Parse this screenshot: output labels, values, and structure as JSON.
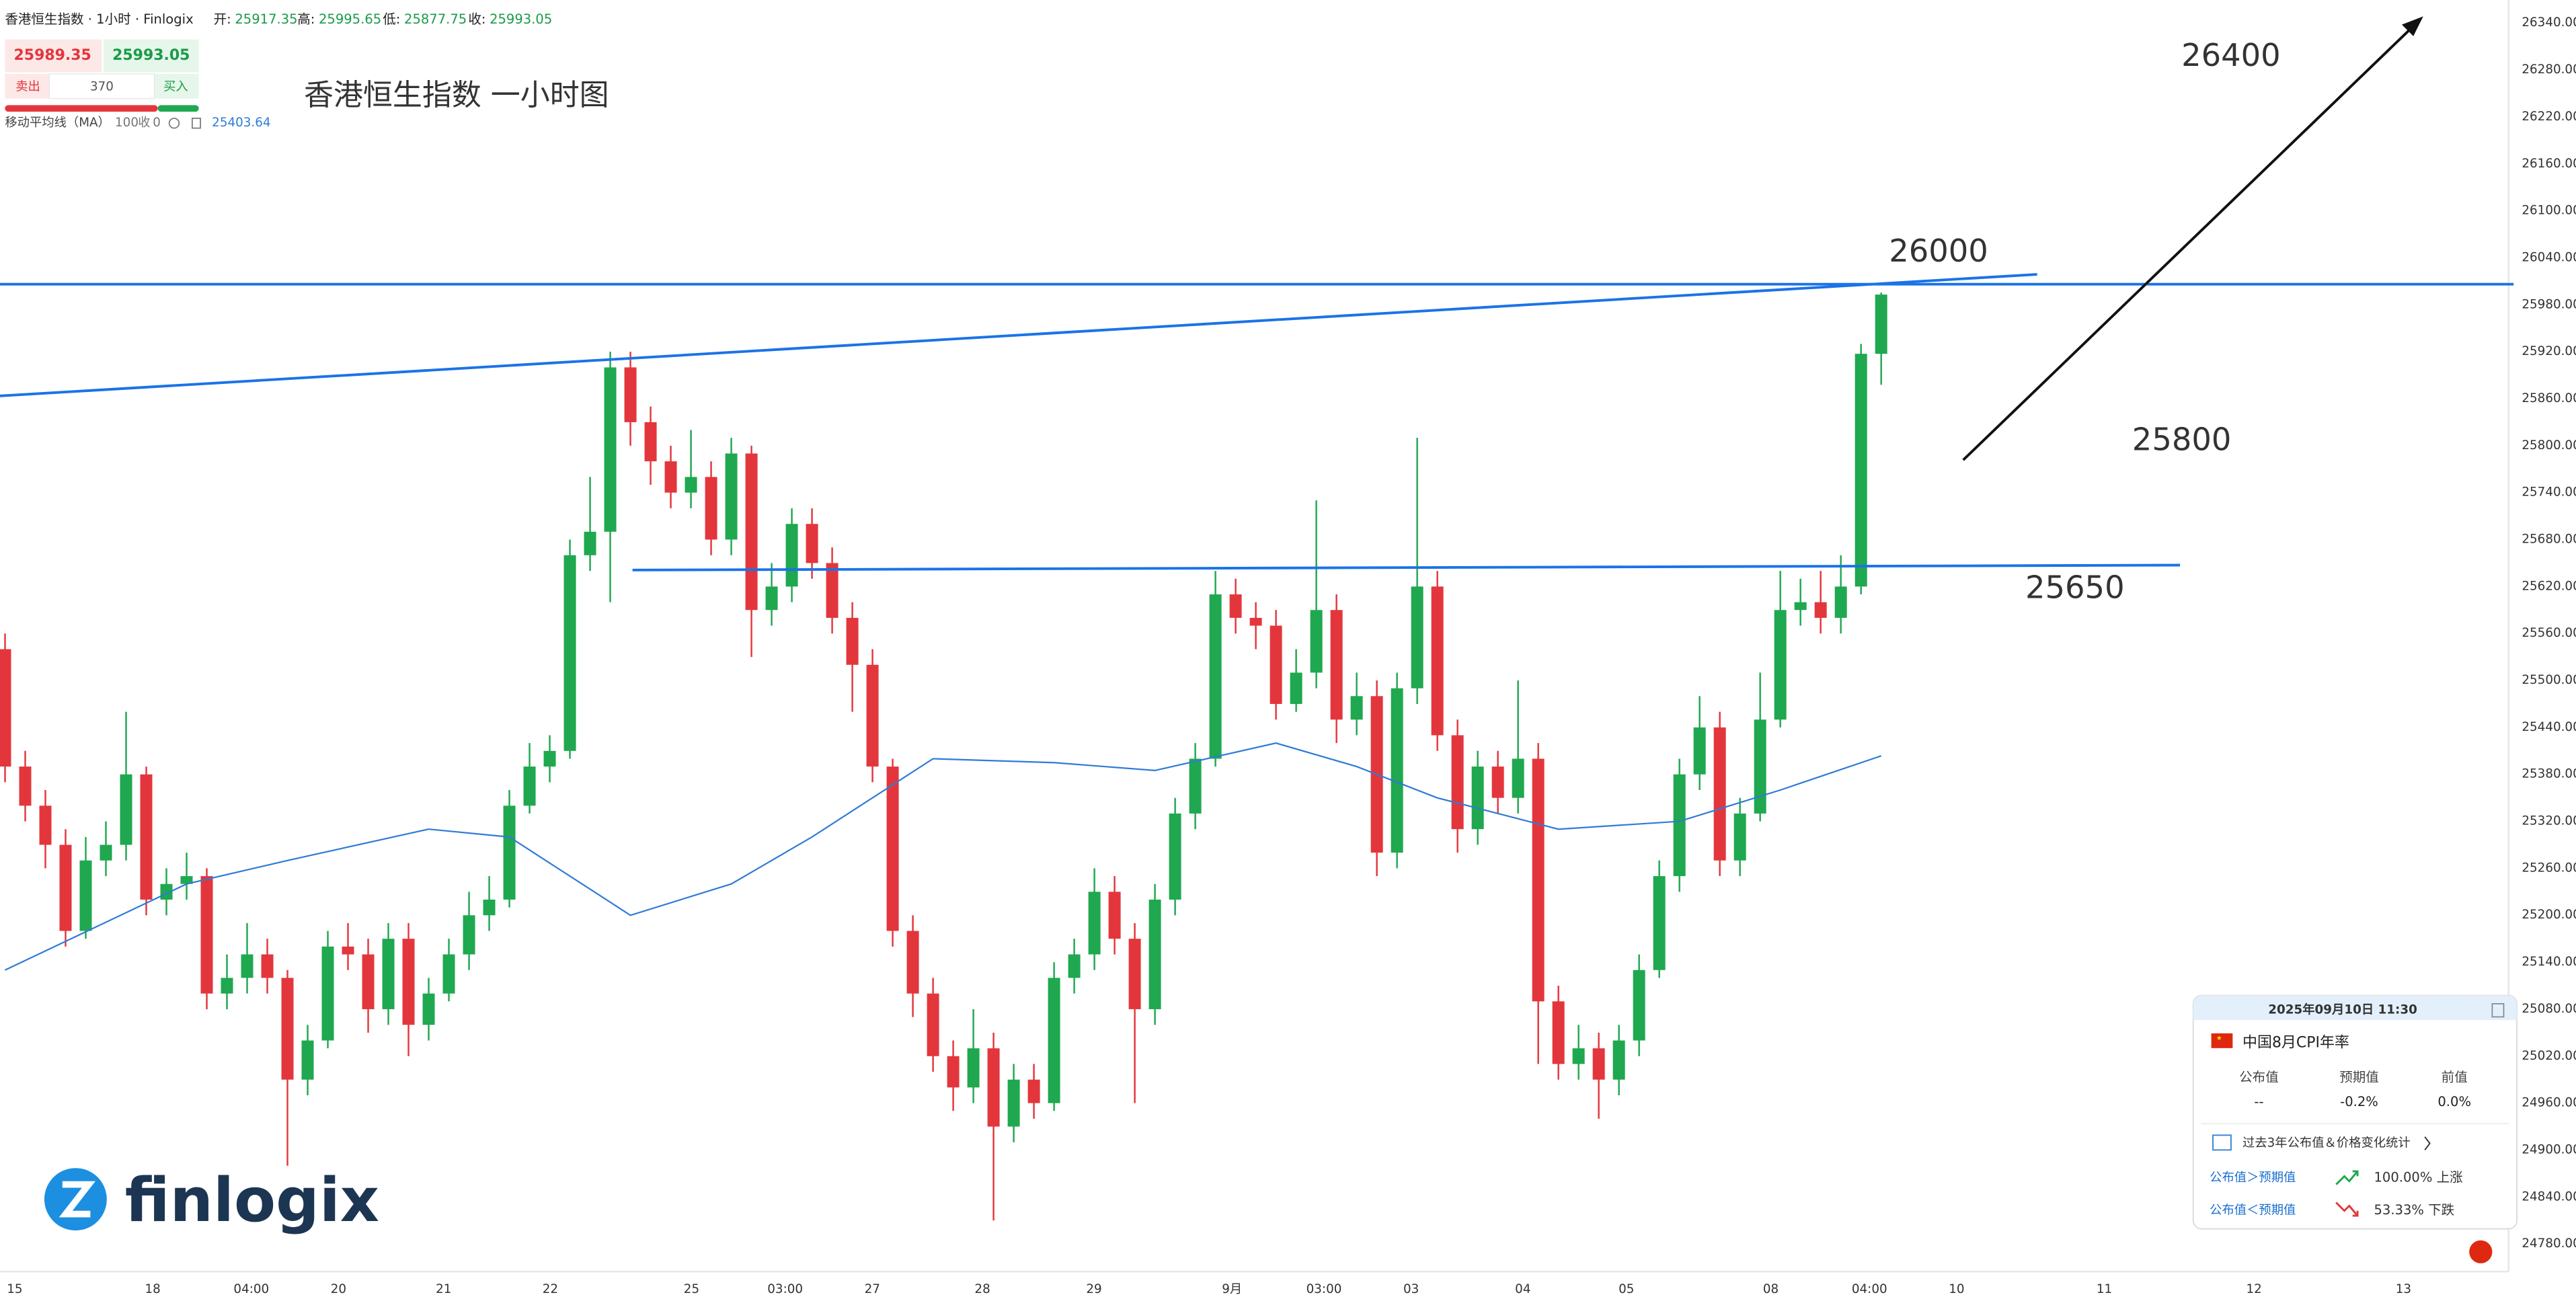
{
  "header": {
    "symbol": "香港恒生指数 · 1小时 · Finlogix",
    "open_label": "开:",
    "open": 25917.35,
    "high_label": "高:",
    "high": 25995.65,
    "low_label": "低:",
    "low": 25877.75,
    "close_label": "收:",
    "close": 25993.05
  },
  "trade": {
    "sell_price": 25989.35,
    "buy_price": 25993.05,
    "sell": "卖出",
    "spread": 370,
    "buy": "买入"
  },
  "title": "香港恒生指数 一小时图",
  "logo": "finlogix",
  "event_card": {
    "datetime": "2025年09月10日 11:30",
    "event": "中国8月CPI年率",
    "columns": [
      "公布值",
      "预期值",
      "前值"
    ],
    "values": [
      "--",
      "-0.2%",
      "0.0%"
    ],
    "stats_link": "过去3年公布值＆价格变化统计",
    "rows": [
      {
        "condition": "公布值＞预期值",
        "result": "100.00% 上涨"
      },
      {
        "condition": "公布值＜预期值",
        "result": "53.33% 下跌"
      }
    ]
  },
  "chart_data": {
    "type": "candlestick",
    "up_color": "#1fa84f",
    "down_color": "#e3363c",
    "open": [
      25540,
      25390,
      25340,
      25290,
      25180,
      25270,
      25290,
      25380,
      25220,
      25240,
      25250,
      25100,
      25120,
      25150,
      25120,
      24990,
      25040,
      25160,
      25150,
      25080,
      25170,
      25060,
      25100,
      25150,
      25200,
      25220,
      25340,
      25390,
      25410,
      25660,
      25690,
      25900,
      25830,
      25780,
      25740,
      25760,
      25680,
      25790,
      25590,
      25620,
      25700,
      25650,
      25580,
      25520,
      25390,
      25180,
      25100,
      25020,
      24980,
      25030,
      24930,
      24990,
      24960,
      25120,
      25150,
      25230,
      25170,
      25080,
      25220,
      25330,
      25400,
      25610,
      25580,
      25570,
      25470,
      25510,
      25590,
      25450,
      25480,
      25280,
      25490,
      25620,
      25430,
      25310,
      25390,
      25350,
      25400,
      25090,
      25010,
      25030,
      24990,
      25040,
      25130,
      25250,
      25380,
      25440,
      25270,
      25330,
      25450,
      25590,
      25600,
      25580,
      25620,
      25917.35
    ],
    "high": [
      25560,
      25410,
      25360,
      25310,
      25300,
      25320,
      25460,
      25390,
      25260,
      25280,
      25260,
      25150,
      25190,
      25170,
      25130,
      25060,
      25180,
      25190,
      25170,
      25190,
      25190,
      25120,
      25170,
      25230,
      25250,
      25360,
      25420,
      25430,
      25680,
      25760,
      25920,
      25920,
      25850,
      25800,
      25820,
      25780,
      25810,
      25800,
      25650,
      25720,
      25720,
      25670,
      25600,
      25540,
      25400,
      25200,
      25120,
      25040,
      25080,
      25050,
      25010,
      25010,
      25140,
      25170,
      25260,
      25250,
      25190,
      25240,
      25350,
      25420,
      25640,
      25630,
      25600,
      25590,
      25540,
      25730,
      25610,
      25510,
      25500,
      25510,
      25810,
      25640,
      25450,
      25410,
      25410,
      25500,
      25420,
      25110,
      25060,
      25050,
      25060,
      25150,
      25270,
      25400,
      25480,
      25460,
      25350,
      25510,
      25640,
      25630,
      25640,
      25660,
      25930,
      25995.65
    ],
    "low": [
      25370,
      25320,
      25260,
      25160,
      25170,
      25250,
      25270,
      25200,
      25200,
      25220,
      25080,
      25080,
      25100,
      25100,
      24880,
      24970,
      25030,
      25130,
      25050,
      25060,
      25020,
      25040,
      25090,
      25130,
      25180,
      25210,
      25330,
      25370,
      25400,
      25640,
      25600,
      25800,
      25750,
      25720,
      25720,
      25660,
      25660,
      25530,
      25570,
      25600,
      25630,
      25560,
      25460,
      25370,
      25160,
      25070,
      25000,
      24950,
      24960,
      24810,
      24910,
      24940,
      24950,
      25100,
      25130,
      25150,
      24960,
      25060,
      25200,
      25310,
      25390,
      25560,
      25540,
      25450,
      25460,
      25490,
      25420,
      25430,
      25250,
      25260,
      25470,
      25410,
      25280,
      25290,
      25330,
      25330,
      25010,
      24990,
      24990,
      24940,
      24970,
      25020,
      25120,
      25230,
      25360,
      25250,
      25250,
      25320,
      25440,
      25570,
      25560,
      25560,
      25610,
      25877.75
    ],
    "close": [
      25390,
      25340,
      25290,
      25180,
      25270,
      25290,
      25380,
      25220,
      25240,
      25250,
      25100,
      25120,
      25150,
      25120,
      24990,
      25040,
      25160,
      25150,
      25080,
      25170,
      25060,
      25100,
      25150,
      25200,
      25220,
      25340,
      25390,
      25410,
      25660,
      25690,
      25900,
      25830,
      25780,
      25740,
      25760,
      25680,
      25790,
      25590,
      25620,
      25700,
      25650,
      25580,
      25520,
      25390,
      25180,
      25100,
      25020,
      24980,
      25030,
      24930,
      24990,
      24960,
      25120,
      25150,
      25230,
      25170,
      25080,
      25220,
      25330,
      25400,
      25610,
      25580,
      25570,
      25470,
      25510,
      25590,
      25450,
      25480,
      25280,
      25490,
      25620,
      25430,
      25310,
      25390,
      25350,
      25400,
      25090,
      25010,
      25030,
      24990,
      25040,
      25130,
      25250,
      25380,
      25440,
      25270,
      25330,
      25450,
      25590,
      25600,
      25580,
      25620,
      25917.35,
      25993.05
    ],
    "series": [
      {
        "name": "移动平均线（MA）",
        "period": 100,
        "source": "收",
        "offset": 0,
        "last_value": 25403.64,
        "color": "#2f7bd6",
        "x": [
          0,
          9,
          14,
          21,
          25,
          31,
          36,
          40,
          46,
          52,
          57,
          63,
          67,
          71,
          77,
          83,
          88,
          93
        ],
        "values": [
          25130,
          25240,
          25270,
          25310,
          25300,
          25200,
          25240,
          25300,
          25400,
          25395,
          25385,
          25420,
          25390,
          25350,
          25310,
          25320,
          25360,
          25403.64
        ]
      }
    ],
    "xlim": [
      -0.25,
      123.94
    ],
    "xticks": [
      {
        "value": 0.48,
        "label": "15"
      },
      {
        "value": 7.32,
        "label": "18"
      },
      {
        "value": 12.21,
        "label": "04:00"
      },
      {
        "value": 16.53,
        "label": "20"
      },
      {
        "value": 21.74,
        "label": "21"
      },
      {
        "value": 27.03,
        "label": "22"
      },
      {
        "value": 34.03,
        "label": "25"
      },
      {
        "value": 38.67,
        "label": "03:00"
      },
      {
        "value": 42.99,
        "label": "27"
      },
      {
        "value": 48.45,
        "label": "28"
      },
      {
        "value": 53.98,
        "label": "29"
      },
      {
        "value": 60.82,
        "label": "9月"
      },
      {
        "value": 65.38,
        "label": "03:00"
      },
      {
        "value": 69.7,
        "label": "03"
      },
      {
        "value": 75.24,
        "label": "04"
      },
      {
        "value": 80.37,
        "label": "05"
      },
      {
        "value": 87.53,
        "label": "08"
      },
      {
        "value": 92.42,
        "label": "04:00"
      },
      {
        "value": 96.74,
        "label": "10"
      },
      {
        "value": 104.06,
        "label": "11"
      },
      {
        "value": 111.48,
        "label": "12"
      },
      {
        "value": 118.89,
        "label": "13"
      }
    ],
    "ylim": [
      24749,
      26369.4
    ],
    "yticks": [
      {
        "value": 26340,
        "label": "26340.00"
      },
      {
        "value": 26280,
        "label": "26280.00"
      },
      {
        "value": 26220,
        "label": "26220.00"
      },
      {
        "value": 26160,
        "label": "26160.00"
      },
      {
        "value": 26100,
        "label": "26100.00"
      },
      {
        "value": 26040,
        "label": "26040.00"
      },
      {
        "value": 25980,
        "label": "25980.00"
      },
      {
        "value": 25920,
        "label": "25920.00"
      },
      {
        "value": 25860,
        "label": "25860.00"
      },
      {
        "value": 25800,
        "label": "25800.00"
      },
      {
        "value": 25740,
        "label": "25740.00"
      },
      {
        "value": 25680,
        "label": "25680.00"
      },
      {
        "value": 25620,
        "label": "25620.00"
      },
      {
        "value": 25560,
        "label": "25560.00"
      },
      {
        "value": 25500,
        "label": "25500.00"
      },
      {
        "value": 25440,
        "label": "25440.00"
      },
      {
        "value": 25380,
        "label": "25380.00"
      },
      {
        "value": 25320,
        "label": "25320.00"
      },
      {
        "value": 25260,
        "label": "25260.00"
      },
      {
        "value": 25200,
        "label": "25200.00"
      },
      {
        "value": 25140,
        "label": "25140.00"
      },
      {
        "value": 25080,
        "label": "25080.00"
      },
      {
        "value": 25020,
        "label": "25020.00"
      },
      {
        "value": 24960,
        "label": "24960.00"
      },
      {
        "value": 24900,
        "label": "24900.00"
      },
      {
        "value": 24840,
        "label": "24840.00"
      },
      {
        "value": 24780,
        "label": "24780.00"
      }
    ],
    "grid": false,
    "annotations": [
      {
        "text": 26400
      },
      {
        "text": 26000
      },
      {
        "text": 25800
      },
      {
        "text": 25650
      }
    ]
  }
}
